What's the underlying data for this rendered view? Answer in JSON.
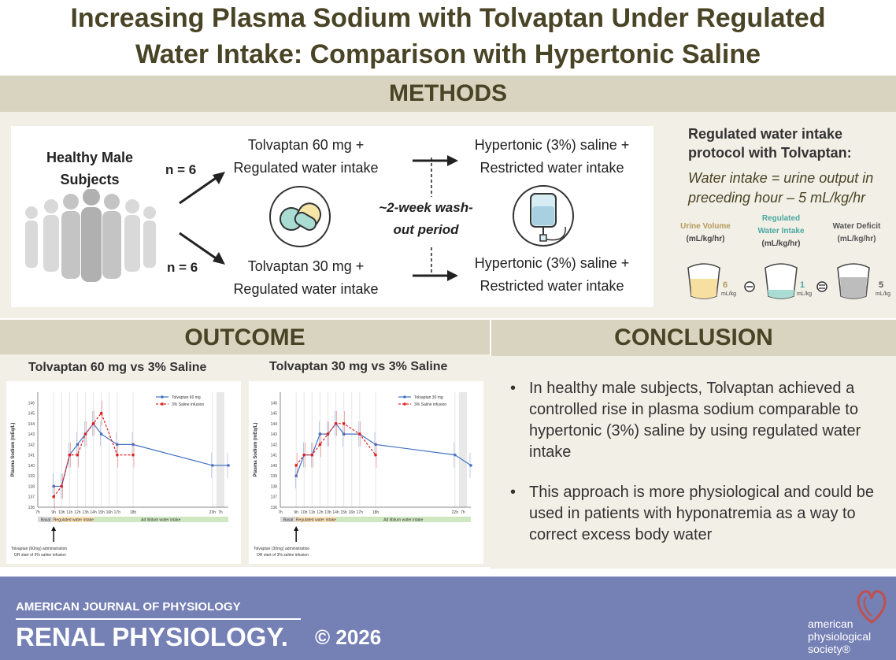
{
  "title": {
    "line1": "Increasing Plasma Sodium with Tolvaptan Under Regulated",
    "line2": "Water Intake: Comparison with Hypertonic Saline"
  },
  "methods": {
    "heading": "METHODS",
    "subjects_line1": "Healthy Male",
    "subjects_line2": "Subjects",
    "n_top": "n = 6",
    "n_bottom": "n = 6",
    "arm1_line1": "Tolvaptan 60 mg +",
    "arm1_line2": "Regulated water intake",
    "arm2_line1": "Tolvaptan 30 mg +",
    "arm2_line2": "Regulated water intake",
    "washout_line1": "~2-week wash-",
    "washout_line2": "out period",
    "saline1_line1": "Hypertonic (3%) saline +",
    "saline1_line2": "Restricted water intake",
    "saline2_line1": "Hypertonic (3%) saline +",
    "saline2_line2": "Restricted water intake"
  },
  "protocol": {
    "heading_line1": "Regulated water intake",
    "heading_line2": "protocol with Tolvaptan:",
    "formula_line1": "Water intake = urine output in",
    "formula_line2": "preceding hour – 5 mL/kg/hr",
    "col1_line1": "Urine Volume",
    "col1_line2": "(mL/kg/hr)",
    "col2_line1": "Regulated",
    "col2_line2": "Water Intake",
    "col2_line3": "(mL/kg/hr)",
    "col3_line1": "Water Deficit",
    "col3_line2": "(mL/kg/hr)",
    "val1": "6",
    "val2": "1",
    "val3": "5",
    "unit": "mL/kg",
    "minus": "−",
    "equals": "="
  },
  "outcome": {
    "heading": "OUTCOME",
    "chart1_title": "Tolvaptan 60 mg vs 3% Saline",
    "chart2_title": "Tolvaptan 30 mg vs 3% Saline"
  },
  "conclusion": {
    "heading": "CONCLUSION",
    "bullet1": "In healthy male subjects, Tolvaptan achieved a controlled rise in plasma sodium comparable to hypertonic (3%) saline by using regulated water intake",
    "bullet2": "This approach is more physiological and could be used in patients with hyponatremia as a way to correct excess body water",
    "bullet_char": "•"
  },
  "footer": {
    "journal_small": "AMERICAN JOURNAL OF PHYSIOLOGY",
    "journal_big": "RENAL PHYSIOLOGY.",
    "copyright": "© 2026",
    "society_line1": "american",
    "society_line2": "physiological",
    "society_line3": "society®"
  },
  "chart_data": [
    {
      "type": "line",
      "ylabel": "Plasma Sodium (mEq/L)",
      "ylim": [
        136,
        147
      ],
      "yticks": [
        "136",
        "137",
        "138",
        "139",
        "140",
        "141",
        "142",
        "143",
        "144",
        "145",
        "146"
      ],
      "x": [
        0,
        2,
        3,
        4,
        5,
        6,
        7,
        8,
        9,
        10,
        12,
        22,
        23
      ],
      "x_tick_labels": [
        "7h",
        "9h",
        "10h",
        "11h",
        "12h",
        "13h",
        "14h",
        "15h",
        "16h",
        "17h",
        "18h",
        "23h",
        "7h"
      ],
      "series": [
        {
          "name": "Tolvaptan 60 mg",
          "color": "#4472c4",
          "dash": false,
          "x": [
            2,
            3,
            4,
            5,
            6,
            7,
            8,
            10,
            12,
            22,
            24
          ],
          "y": [
            138,
            138,
            141,
            142,
            143,
            144,
            143,
            142,
            142,
            140,
            140
          ]
        },
        {
          "name": "3% Saline infusion",
          "color": "#e02020",
          "dash": true,
          "x": [
            2,
            3,
            4,
            5,
            6,
            7,
            8,
            10,
            12
          ],
          "y": [
            137,
            138,
            141,
            141,
            143,
            144,
            145,
            141,
            141
          ]
        }
      ],
      "bands": {
        "basal": "Basal",
        "regulated": "Regulated water intake",
        "ad_lib": "Ad libitum water intake"
      },
      "annotation_line1": "Tolvaptan (60mg) administration",
      "annotation_line2": "OR start of 3% saline infusion",
      "legend": "top-right"
    },
    {
      "type": "line",
      "ylabel": "Plasma Sodium (mEq/L)",
      "ylim": [
        136,
        147
      ],
      "yticks": [
        "136",
        "137",
        "138",
        "139",
        "140",
        "141",
        "142",
        "143",
        "144",
        "145",
        "146"
      ],
      "x": [
        0,
        2,
        3,
        4,
        5,
        6,
        7,
        8,
        9,
        10,
        12,
        22,
        23
      ],
      "x_tick_labels": [
        "7h",
        "9h",
        "10h",
        "11h",
        "12h",
        "13h",
        "14h",
        "15h",
        "16h",
        "17h",
        "18h",
        "22h",
        "7h"
      ],
      "series": [
        {
          "name": "Tolvaptan 30 mg",
          "color": "#4472c4",
          "dash": false,
          "x": [
            2,
            3,
            4,
            5,
            6,
            7,
            8,
            10,
            12,
            22,
            24
          ],
          "y": [
            139,
            141,
            141,
            143,
            143,
            144,
            143,
            143,
            142,
            141,
            140
          ]
        },
        {
          "name": "3% Saline infusion",
          "color": "#e02020",
          "dash": true,
          "x": [
            2,
            3,
            4,
            5,
            6,
            7,
            8,
            10,
            12
          ],
          "y": [
            140,
            141,
            141,
            142,
            143,
            144,
            144,
            143,
            141
          ]
        }
      ],
      "bands": {
        "basal": "Basal",
        "regulated": "Regulated water intake",
        "ad_lib": "Ad libitum water intake"
      },
      "annotation_line1": "Tolvaptan (30mg) administration",
      "annotation_line2": "OR start of 3% saline infusion",
      "legend": "top-right"
    }
  ]
}
